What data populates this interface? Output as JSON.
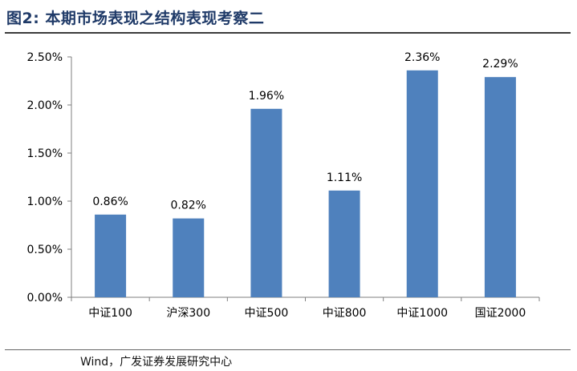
{
  "figure": {
    "title": "图2:  本期市场表现之结构表现考察二",
    "source": "Wind，广发证券发展研究中心"
  },
  "chart_data": {
    "type": "bar",
    "categories": [
      "中证100",
      "沪深300",
      "中证500",
      "中证800",
      "中证1000",
      "国证2000"
    ],
    "values": [
      0.86,
      0.82,
      1.96,
      1.11,
      2.36,
      2.29
    ],
    "data_labels": [
      "0.86%",
      "0.82%",
      "1.96%",
      "1.11%",
      "2.36%",
      "2.29%"
    ],
    "y_ticks": [
      "0.00%",
      "0.50%",
      "1.00%",
      "1.50%",
      "2.00%",
      "2.50%"
    ],
    "ylim": [
      0,
      2.5
    ],
    "title": "",
    "xlabel": "",
    "ylabel": "",
    "bar_color": "#4f81bd",
    "grid": false,
    "legend": "none"
  }
}
